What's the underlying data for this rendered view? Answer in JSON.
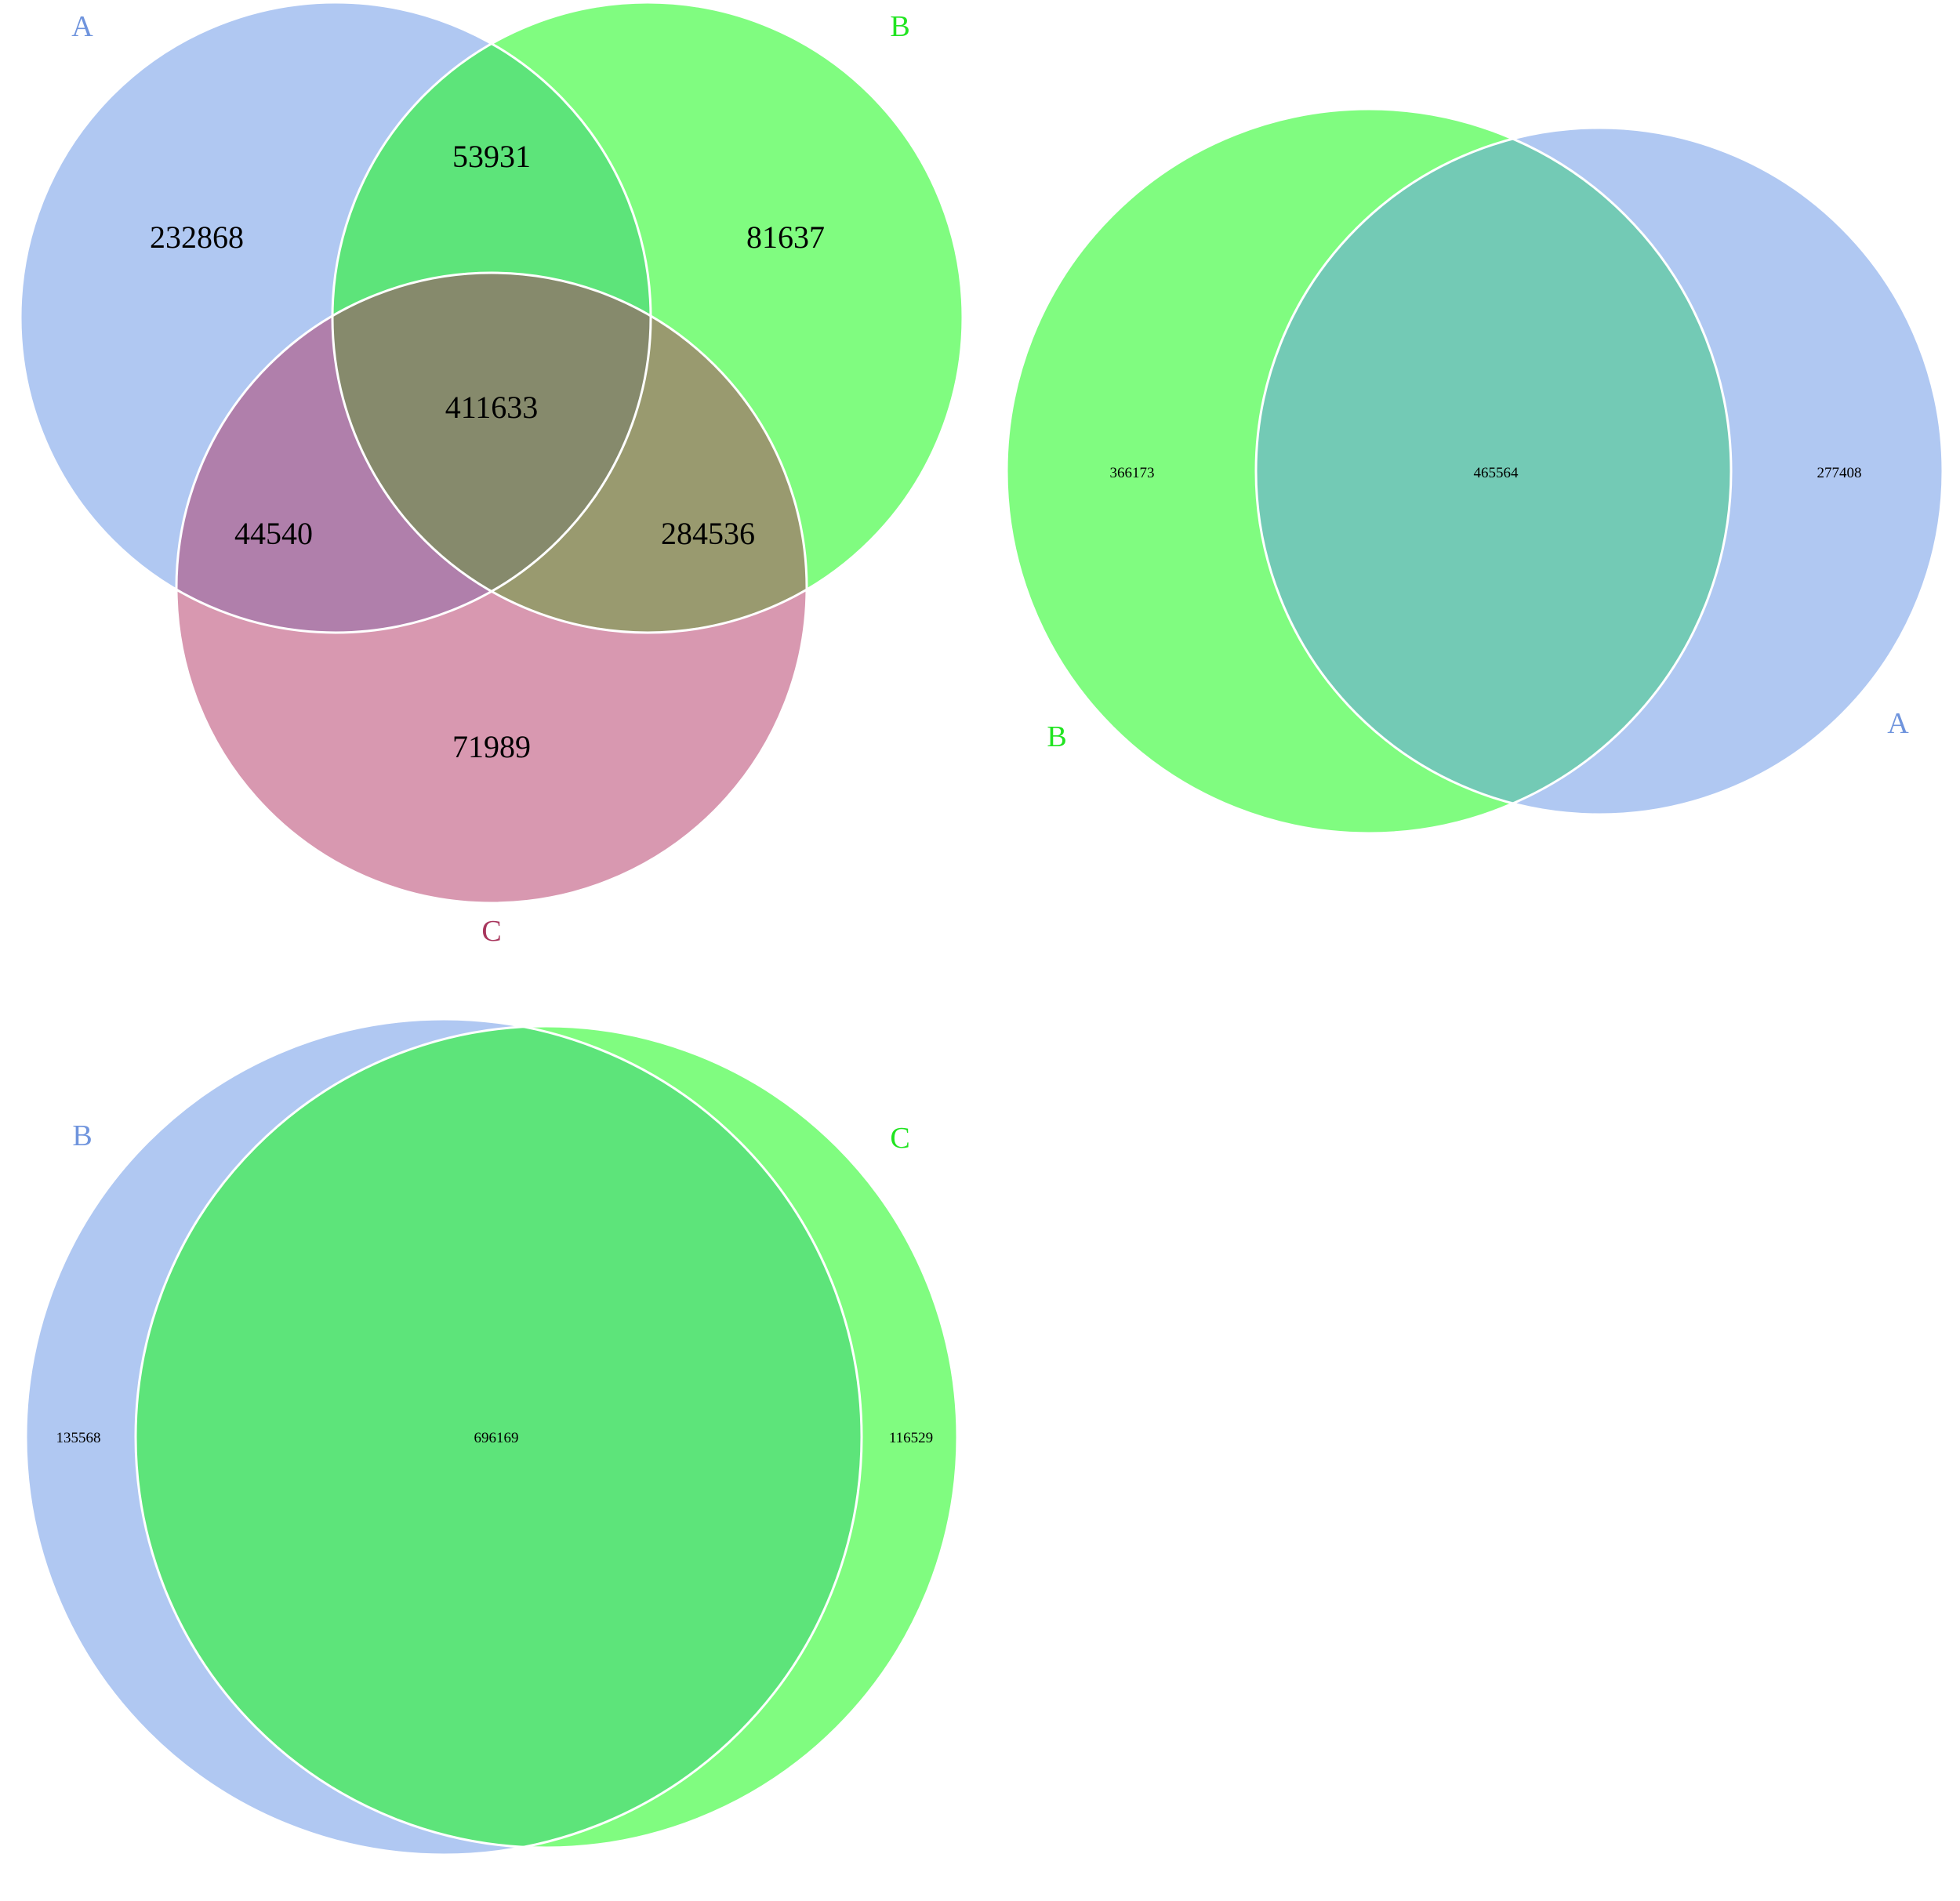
{
  "colors": {
    "blue": "#b0c8f2",
    "green": "#80fc80",
    "pink": "#d898b0",
    "blue_label": "#6f94dd",
    "green_label": "#21e421",
    "pink_label": "#a8365d",
    "ab_overlap": "#5de47a",
    "abc_overlap": "#868a6c",
    "ac_overlap": "#b07fab",
    "bc_overlap": "#999a6f",
    "two_set_overlap": "#73cab5",
    "outline": "#ffffff"
  },
  "diagram_three_set": {
    "set_labels": {
      "a": "A",
      "b": "B",
      "c": "C"
    },
    "counts": {
      "a_only": "232868",
      "b_only": "81637",
      "c_only": "71989",
      "a_b": "53931",
      "a_c": "44540",
      "b_c": "284536",
      "a_b_c": "411633"
    }
  },
  "diagram_a_b": {
    "set_labels": {
      "b": "B",
      "a": "A"
    },
    "counts": {
      "b_only": "366173",
      "a_b": "465564",
      "a_only": "277408"
    }
  },
  "diagram_b_c": {
    "set_labels": {
      "b": "B",
      "c": "C"
    },
    "counts": {
      "b_only": "135568",
      "b_c": "696169",
      "c_only": "116529"
    }
  }
}
